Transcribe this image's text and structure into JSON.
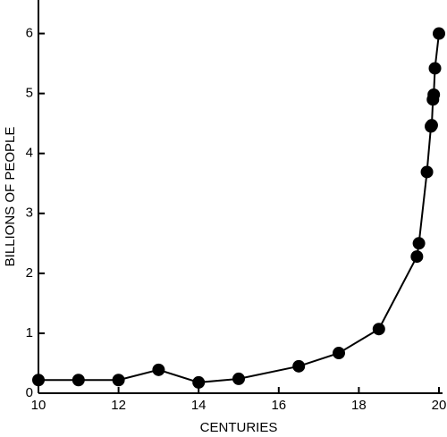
{
  "chart_data": {
    "type": "line",
    "x_label": "CENTURIES",
    "y_label": "BILLIONS OF PEOPLE",
    "x": [
      10,
      11,
      12,
      13,
      14,
      15,
      16.5,
      17.5,
      18.5,
      19.45,
      19.5,
      19.7,
      19.8,
      19.82,
      19.85,
      19.87,
      19.9,
      20
    ],
    "values": [
      0.22,
      0.22,
      0.22,
      0.39,
      0.18,
      0.24,
      0.45,
      0.67,
      1.07,
      2.28,
      2.5,
      3.69,
      4.45,
      4.47,
      4.9,
      4.98,
      5.42,
      6.0
    ],
    "color": "#000000",
    "xlim": [
      10,
      20
    ],
    "xticks": [
      10,
      12,
      14,
      16,
      18,
      20
    ],
    "ylim": [
      0,
      6.5
    ],
    "yticks": [
      0,
      1,
      2,
      3,
      4,
      5,
      6
    ]
  }
}
